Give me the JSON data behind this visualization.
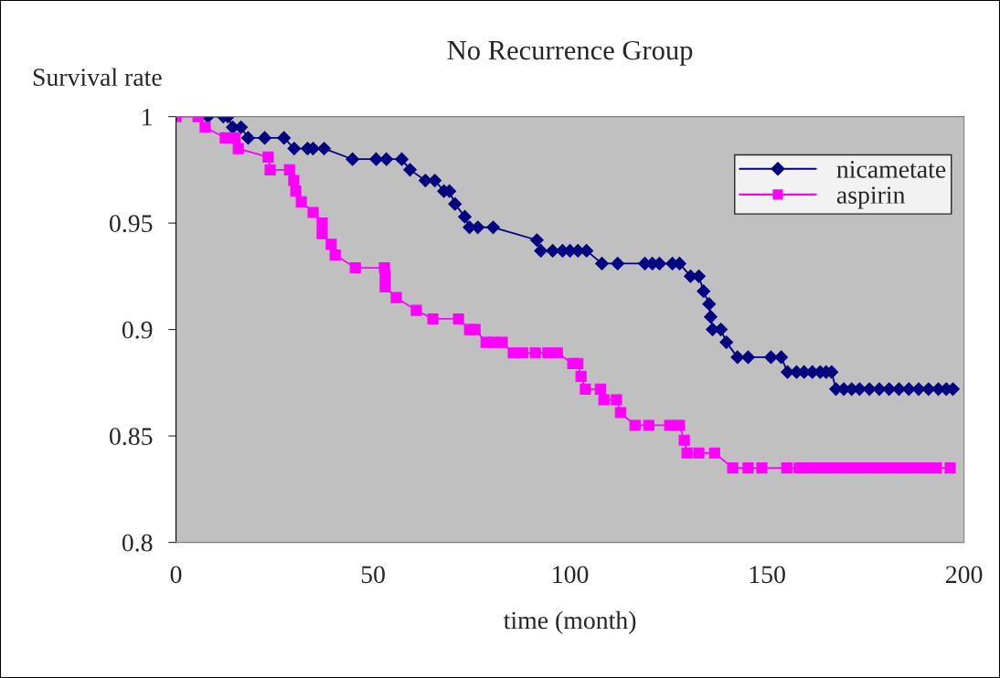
{
  "chart_data": {
    "type": "line",
    "title": "No Recurrence Group",
    "xlabel": "time (month)",
    "ylabel": "Survival rate",
    "xlim": [
      0,
      200
    ],
    "ylim": [
      0.8,
      1
    ],
    "xticks": [
      0,
      50,
      100,
      150,
      200
    ],
    "yticks": [
      0.8,
      0.85,
      0.9,
      0.95,
      {
        "value": 1,
        "label": "1"
      }
    ],
    "grid": false,
    "legend": "top right",
    "line_style": "solid",
    "series": [
      {
        "name": "nicametate",
        "color": "#000080",
        "marker": "diamond",
        "x": [
          8.1,
          12,
          13.2,
          14.4,
          16.5,
          18.3,
          22.5,
          27.4,
          30,
          33.4,
          34.8,
          37.6,
          44.8,
          50.8,
          53.4,
          57.3,
          59.4,
          63.3,
          65.7,
          68,
          69.4,
          70.8,
          73.3,
          74.5,
          76.6,
          80.5,
          91.6,
          92.6,
          95.6,
          98.1,
          100,
          102,
          104.2,
          108.1,
          112.1,
          119,
          120.9,
          122.7,
          126,
          127.8,
          130.6,
          132.7,
          133.9,
          135.3,
          135.7,
          136.2,
          138.3,
          139.7,
          142.5,
          145.2,
          151,
          153.6,
          155.2,
          157.5,
          159.4,
          161.5,
          163.5,
          165,
          166.4,
          167.5,
          169.5,
          171.5,
          173.5,
          176,
          178.5,
          181,
          183.5,
          186,
          188.5,
          191,
          193.5,
          195.5,
          197.2
        ],
        "values": [
          1,
          1,
          1,
          0.995,
          0.995,
          0.99,
          0.99,
          0.99,
          0.985,
          0.985,
          0.985,
          0.985,
          0.98,
          0.98,
          0.98,
          0.98,
          0.975,
          0.97,
          0.97,
          0.965,
          0.965,
          0.959,
          0.953,
          0.948,
          0.948,
          0.948,
          0.942,
          0.937,
          0.937,
          0.937,
          0.937,
          0.937,
          0.937,
          0.931,
          0.931,
          0.931,
          0.931,
          0.931,
          0.931,
          0.931,
          0.925,
          0.925,
          0.918,
          0.912,
          0.906,
          0.9,
          0.9,
          0.894,
          0.887,
          0.887,
          0.887,
          0.887,
          0.88,
          0.88,
          0.88,
          0.88,
          0.88,
          0.88,
          0.88,
          0.872,
          0.872,
          0.872,
          0.872,
          0.872,
          0.872,
          0.872,
          0.872,
          0.872,
          0.872,
          0.872,
          0.872,
          0.872,
          0.872
        ]
      },
      {
        "name": "aspirin",
        "color": "#ff00ff",
        "marker": "square",
        "x": [
          0,
          5.6,
          7.4,
          12.5,
          15,
          15.8,
          23.4,
          23.9,
          28.8,
          29.9,
          30.4,
          31.8,
          34.8,
          37.1,
          37.1,
          39.4,
          40.4,
          45.5,
          52.9,
          53.1,
          53.1,
          55.9,
          61,
          65.2,
          71.7,
          74.5,
          75.9,
          78.7,
          80.7,
          82.8,
          85.6,
          88,
          91.2,
          94.4,
          96.8,
          100.7,
          102,
          102.8,
          103.9,
          107.7,
          108.6,
          111.8,
          112.8,
          116.5,
          120,
          125.3,
          127.8,
          129,
          129.7,
          132.7,
          136.7,
          141.3,
          145.2,
          148.7,
          155,
          158.2,
          160.5,
          163,
          165.5,
          168,
          170.5,
          173,
          175.5,
          178,
          180.5,
          183,
          185.5,
          188,
          190.5,
          193,
          196.5
        ],
        "values": [
          1,
          1,
          0.995,
          0.99,
          0.99,
          0.985,
          0.981,
          0.975,
          0.975,
          0.97,
          0.965,
          0.96,
          0.955,
          0.95,
          0.945,
          0.94,
          0.935,
          0.929,
          0.929,
          0.925,
          0.92,
          0.915,
          0.909,
          0.905,
          0.905,
          0.9,
          0.9,
          0.894,
          0.894,
          0.894,
          0.889,
          0.889,
          0.889,
          0.889,
          0.889,
          0.884,
          0.884,
          0.878,
          0.872,
          0.872,
          0.867,
          0.867,
          0.861,
          0.855,
          0.855,
          0.855,
          0.855,
          0.848,
          0.842,
          0.842,
          0.842,
          0.835,
          0.835,
          0.835,
          0.835,
          0.835,
          0.835,
          0.835,
          0.835,
          0.835,
          0.835,
          0.835,
          0.835,
          0.835,
          0.835,
          0.835,
          0.835,
          0.835,
          0.835,
          0.835,
          0.835
        ]
      }
    ]
  }
}
